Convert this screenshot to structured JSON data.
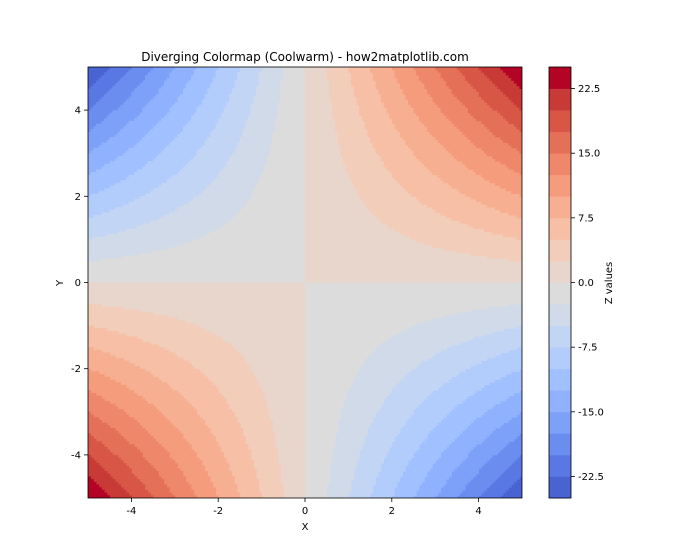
{
  "chart_data": {
    "type": "contourf",
    "title": "Diverging Colormap (Coolwarm) - how2matplotlib.com",
    "xlabel": "X",
    "ylabel": "Y",
    "xlim": [
      -5,
      5
    ],
    "ylim": [
      -5,
      5
    ],
    "x_ticks": [
      -4,
      -2,
      0,
      2,
      4
    ],
    "y_ticks": [
      -4,
      -2,
      0,
      2,
      4
    ],
    "function": "z = x * y",
    "colormap": "coolwarm",
    "grid": false,
    "colorbar": {
      "label": "Z values",
      "min": -25,
      "max": 25,
      "levels": [
        -25,
        -22.5,
        -20,
        -17.5,
        -15,
        -12.5,
        -10,
        -7.5,
        -5,
        -2.5,
        0,
        2.5,
        5,
        7.5,
        10,
        12.5,
        15,
        17.5,
        20,
        22.5,
        25
      ],
      "tick_values": [
        -22.5,
        -15,
        -7.5,
        0,
        7.5,
        15,
        22.5
      ],
      "tick_labels": [
        "-22.5",
        "-15.0",
        "-7.5",
        "0.0",
        "7.5",
        "15.0",
        "22.5"
      ],
      "colors": [
        "#4a63d3",
        "#5a78e4",
        "#6b8df0",
        "#7da0f9",
        "#8fb1fe",
        "#a1c0ff",
        "#b2ccfb",
        "#c3d5f4",
        "#d1dae9",
        "#dddcdc",
        "#e8d6cc",
        "#f1cdba",
        "#f6bfa6",
        "#f7af91",
        "#f59c7d",
        "#ef886b",
        "#e57058",
        "#d85646",
        "#c83a36",
        "#b40426"
      ]
    }
  }
}
